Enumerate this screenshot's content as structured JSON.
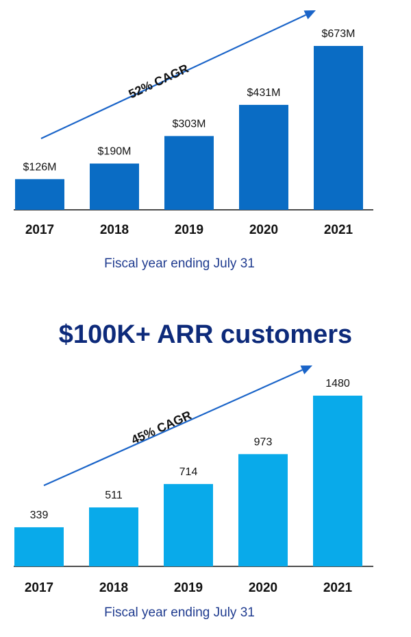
{
  "charts": [
    {
      "id": "top",
      "annotation": "52% CAGR",
      "caption": "Fiscal year ending July 31",
      "bar_color": "#0a6cc4",
      "chart_data": {
        "type": "bar",
        "categories": [
          "2017",
          "2018",
          "2019",
          "2020",
          "2021"
        ],
        "values": [
          126,
          190,
          303,
          431,
          673
        ],
        "value_labels": [
          "$126M",
          "$190M",
          "$303M",
          "$431M",
          "$673M"
        ],
        "title": "",
        "xlabel": "Fiscal year ending July 31",
        "ylabel": "",
        "ylim": [
          0,
          673
        ]
      }
    },
    {
      "id": "bottom",
      "title": "$100K+ ARR customers",
      "annotation": "45% CAGR",
      "caption": "Fiscal year ending July 31",
      "bar_color": "#09aaea",
      "chart_data": {
        "type": "bar",
        "categories": [
          "2017",
          "2018",
          "2019",
          "2020",
          "2021"
        ],
        "values": [
          339,
          511,
          714,
          973,
          1480
        ],
        "value_labels": [
          "339",
          "511",
          "714",
          "973",
          "1480"
        ],
        "title": "$100K+ ARR customers",
        "xlabel": "Fiscal year ending July 31",
        "ylabel": "",
        "ylim": [
          0,
          1480
        ]
      }
    }
  ],
  "arrow_color": "#1a64c8"
}
